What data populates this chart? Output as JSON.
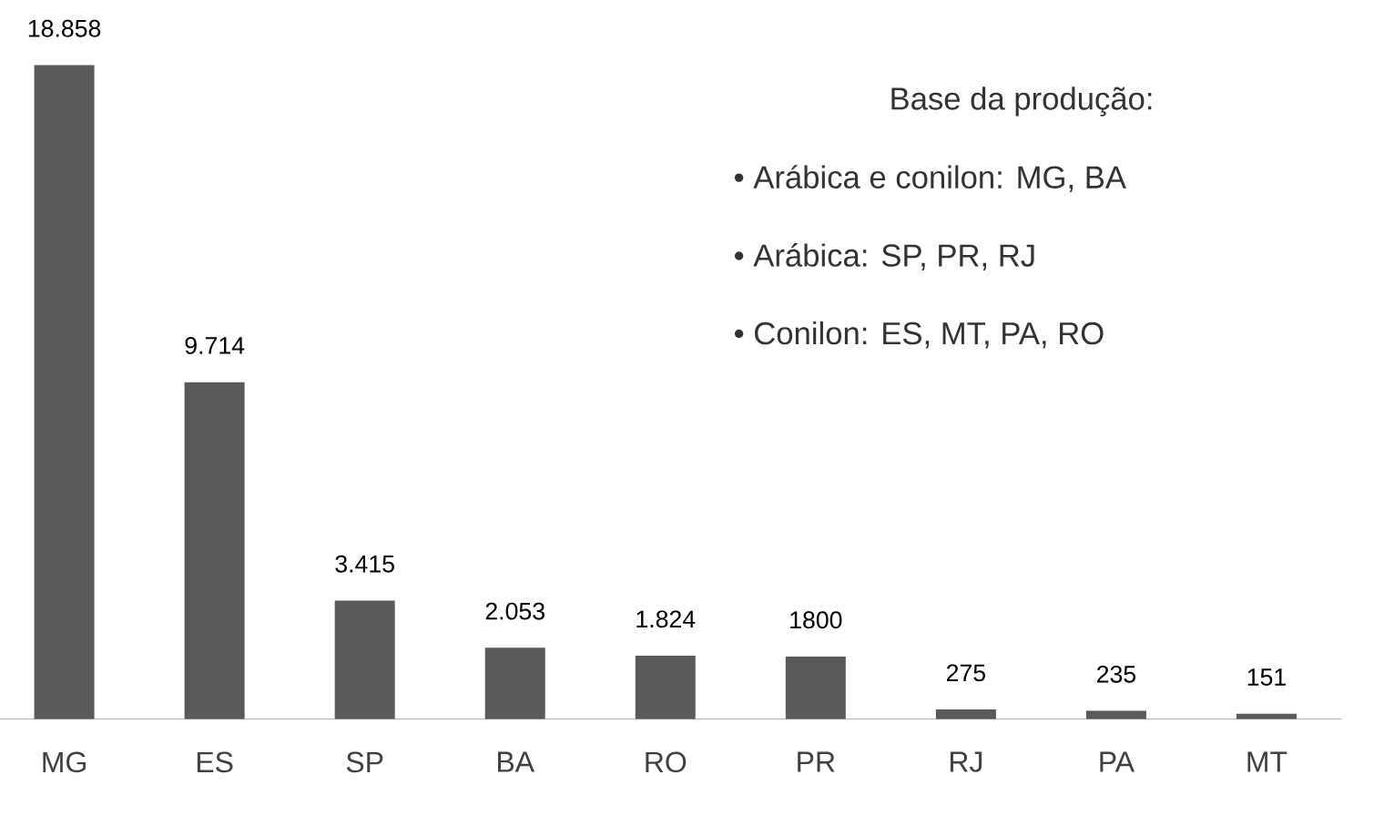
{
  "chart_data": {
    "type": "bar",
    "categories": [
      "MG",
      "ES",
      "SP",
      "BA",
      "RO",
      "PR",
      "RJ",
      "PA",
      "MT"
    ],
    "values": [
      18858,
      9714,
      3415,
      2053,
      1824,
      1800,
      275,
      235,
      151
    ],
    "value_labels": [
      "18.858",
      "9.714",
      "3.415",
      "2.053",
      "1.824",
      "1800",
      "275",
      "235",
      "151"
    ],
    "color": "#595959",
    "annotations": [
      "Base da produção:",
      "• Arábica e conilon: MG, BA",
      "• Arábica: SP, PR, RJ",
      "• Conilon: ES, MT, PA, RO"
    ]
  }
}
